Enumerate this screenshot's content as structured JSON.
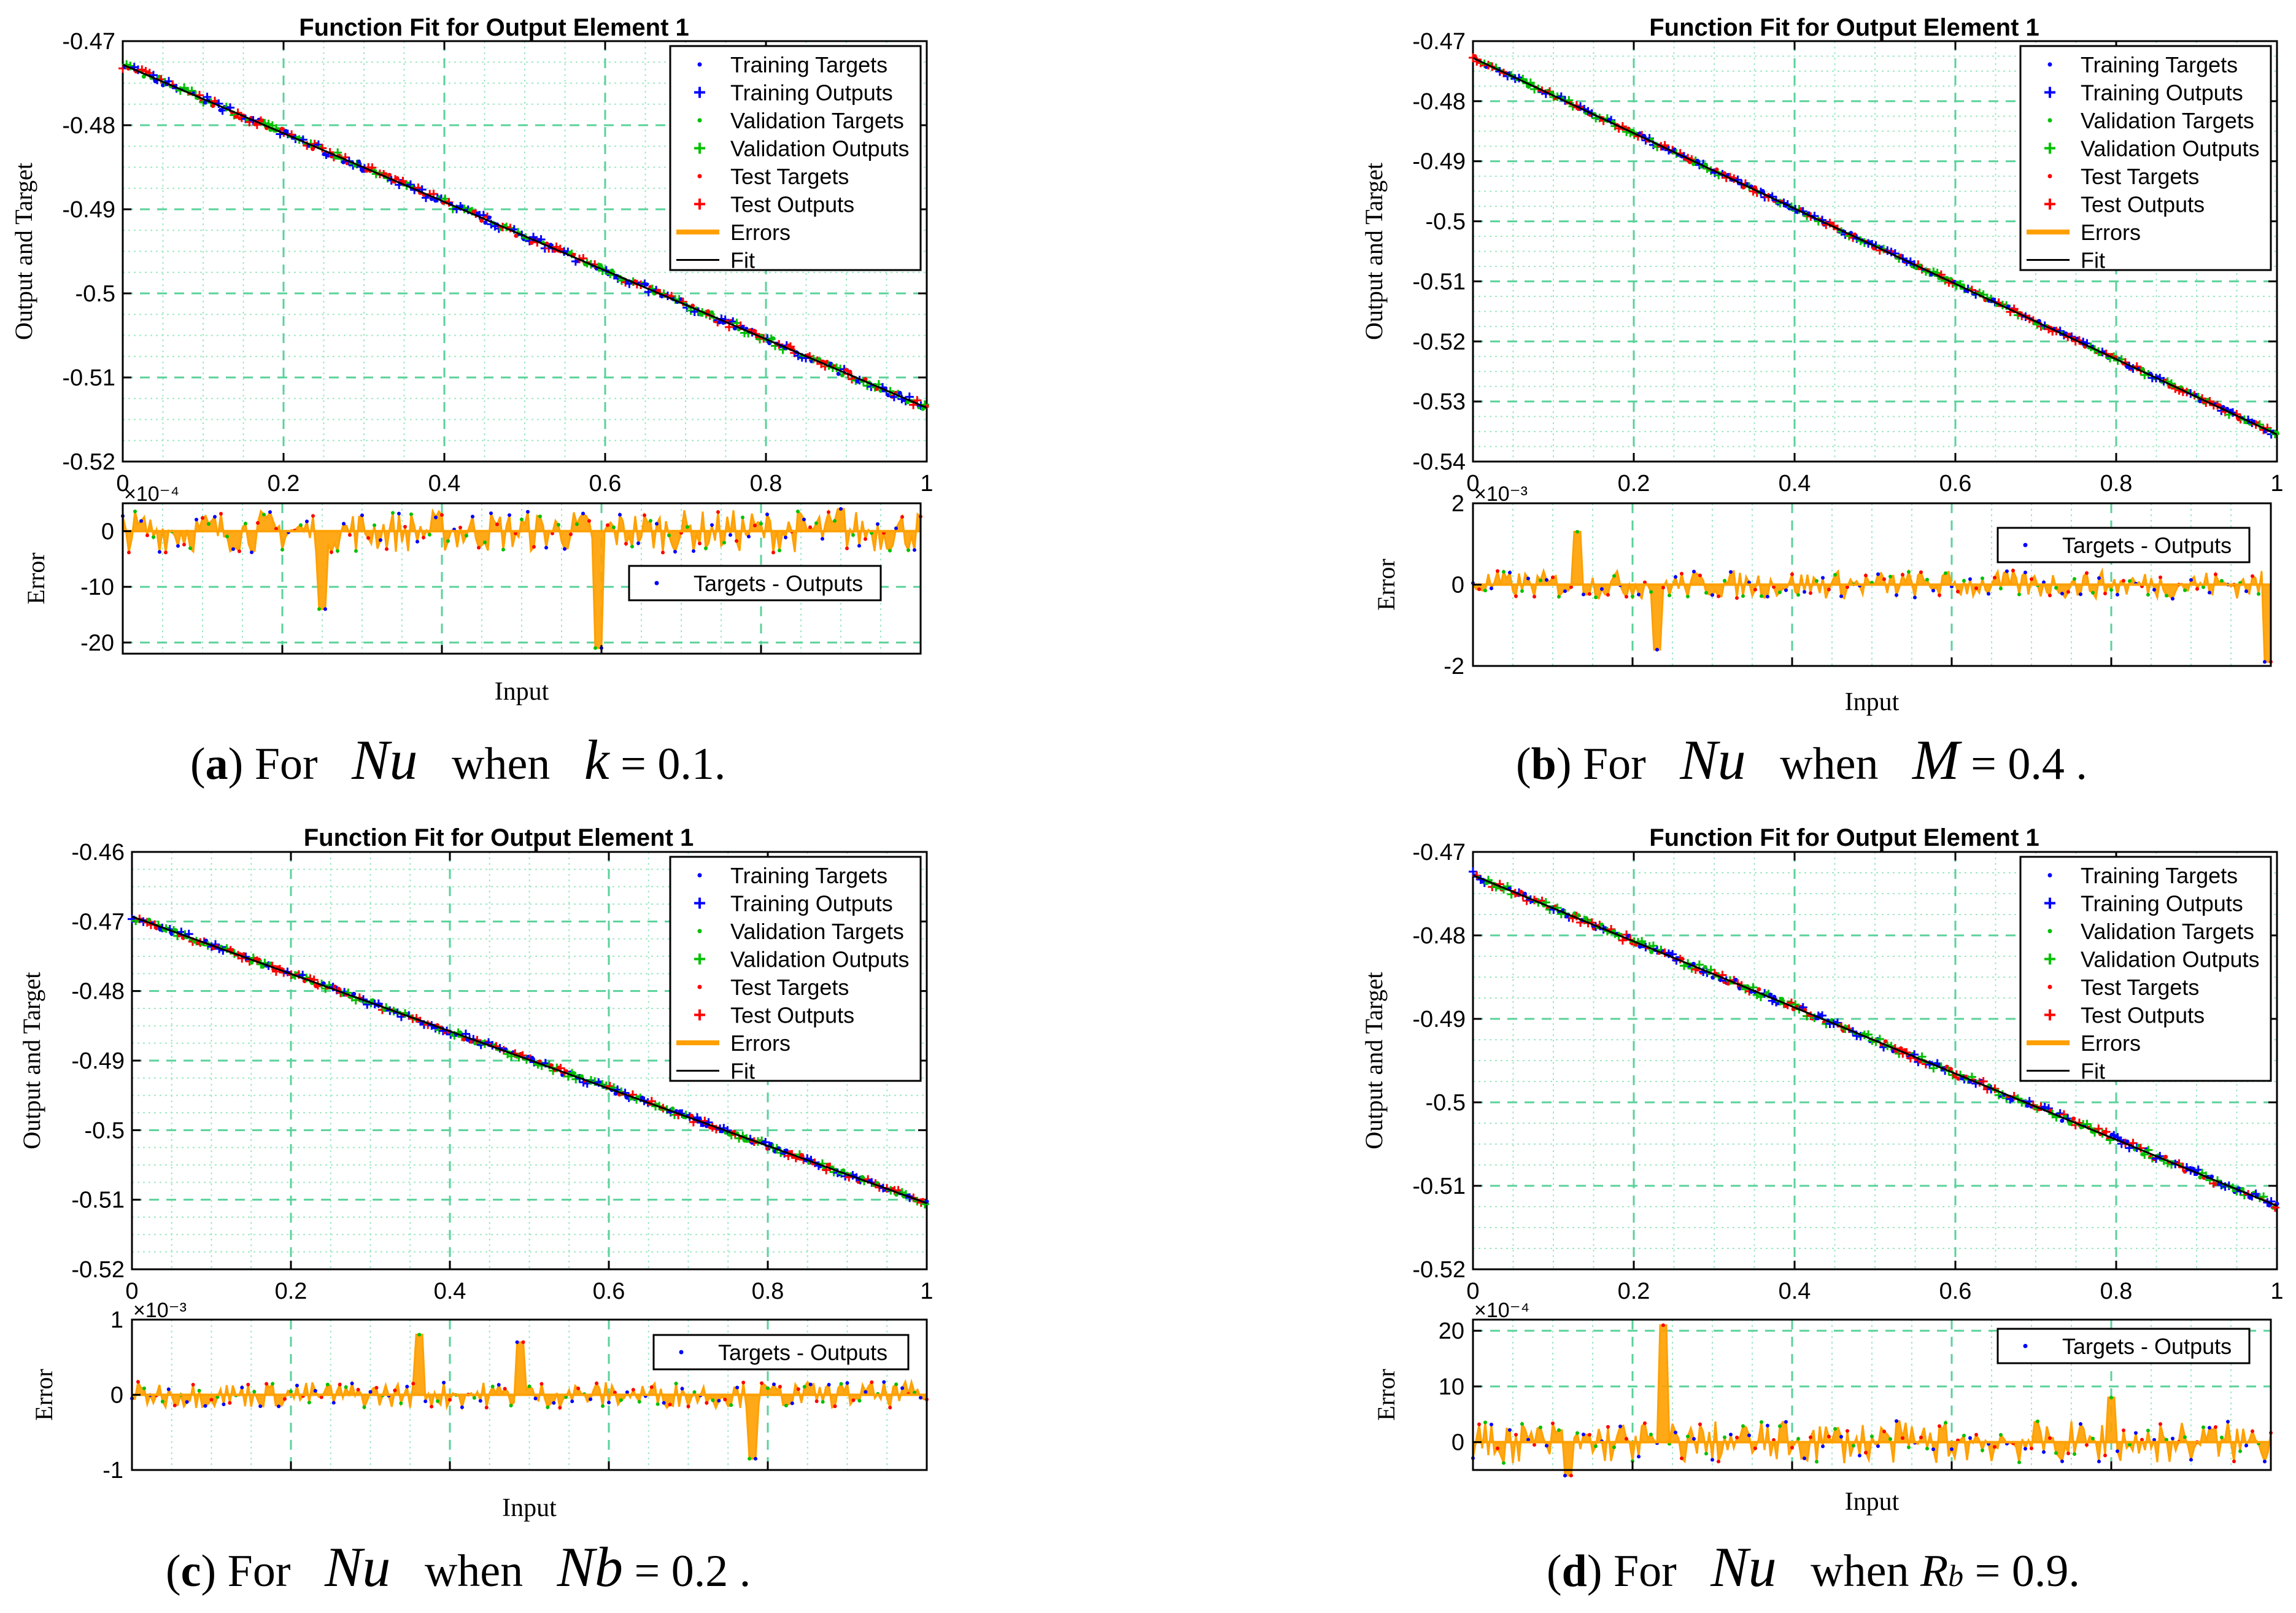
{
  "colors": {
    "training": "#0000ff",
    "validation": "#00c000",
    "test": "#ff0000",
    "errors": "#ffa000",
    "fit": "#000000",
    "grid_major": "#5ad29a",
    "grid_minor": "#9fe8c4"
  },
  "legend_labels": [
    "Training Targets",
    "Training Outputs",
    "Validation Targets",
    "Validation Outputs",
    "Test Targets",
    "Test Outputs",
    "Errors",
    "Fit"
  ],
  "error_legend_label": "Targets - Outputs",
  "chart_data": [
    {
      "id": "a",
      "type": "line",
      "title": "Function Fit for Output Element 1",
      "xlabel": "Input",
      "ylabel": "Output and Target",
      "xlim": [
        0,
        1
      ],
      "x_ticks": [
        "0",
        "0.2",
        "0.4",
        "0.6",
        "0.8",
        "1"
      ],
      "ylim": [
        -0.52,
        -0.47
      ],
      "y_ticks": [
        "-0.47",
        "-0.48",
        "-0.49",
        "-0.5",
        "-0.51",
        "-0.52"
      ],
      "fit_line": {
        "x": [
          0,
          1
        ],
        "y": [
          -0.4728,
          -0.5136
        ]
      },
      "error_panel": {
        "ylabel": "Error",
        "exponent": "×10⁻⁴",
        "ylim": [
          -22,
          5
        ],
        "y_ticks": [
          "0",
          "-10",
          "-20"
        ],
        "y_tick_values": [
          0,
          -10,
          -20
        ],
        "spikes": [
          {
            "x": 0.25,
            "value": -14
          },
          {
            "x": 0.595,
            "value": -21
          },
          {
            "x": 0.9,
            "value": 4
          }
        ],
        "legend_position": "right"
      },
      "caption": {
        "label": "a",
        "prefix": "For",
        "var": "Nu",
        "when": "when",
        "param": "k",
        "eq": "= 0.1."
      }
    },
    {
      "id": "b",
      "type": "line",
      "title": "Function Fit for Output Element 1",
      "xlabel": "Input",
      "ylabel": "Output and Target",
      "xlim": [
        0,
        1
      ],
      "x_ticks": [
        "0",
        "0.2",
        "0.4",
        "0.6",
        "0.8",
        "1"
      ],
      "ylim": [
        -0.54,
        -0.47
      ],
      "y_ticks": [
        "-0.47",
        "-0.48",
        "-0.49",
        "-0.5",
        "-0.51",
        "-0.52",
        "-0.53",
        "-0.54"
      ],
      "fit_line": {
        "x": [
          0,
          1
        ],
        "y": [
          -0.4728,
          -0.5355
        ]
      },
      "error_panel": {
        "ylabel": "Error",
        "exponent": "×10⁻³",
        "ylim": [
          -2,
          2
        ],
        "y_ticks": [
          "2",
          "0",
          "-2"
        ],
        "y_tick_values": [
          2,
          0,
          -2
        ],
        "spikes": [
          {
            "x": 0.13,
            "value": 1.3
          },
          {
            "x": 0.23,
            "value": -1.6
          },
          {
            "x": 0.995,
            "value": -1.9
          }
        ],
        "legend_position": "top-right"
      },
      "caption": {
        "label": "b",
        "prefix": "For",
        "var": "Nu",
        "when": "when",
        "param": "M",
        "eq": "= 0.4 ."
      }
    },
    {
      "id": "c",
      "type": "line",
      "title": "Function Fit for Output Element 1",
      "xlabel": "Input",
      "ylabel": "Output and Target",
      "xlim": [
        0,
        1
      ],
      "x_ticks": [
        "0",
        "0.2",
        "0.4",
        "0.6",
        "0.8",
        "1"
      ],
      "ylim": [
        -0.52,
        -0.46
      ],
      "y_ticks": [
        "-0.46",
        "-0.47",
        "-0.48",
        "-0.49",
        "-0.5",
        "-0.51",
        "-0.52"
      ],
      "fit_line": {
        "x": [
          0,
          1
        ],
        "y": [
          -0.4693,
          -0.5105
        ]
      },
      "error_panel": {
        "ylabel": "Error",
        "exponent": "×10⁻³",
        "ylim": [
          -1,
          1
        ],
        "y_ticks": [
          "1",
          "0",
          "-1"
        ],
        "y_tick_values": [
          1,
          0,
          -1
        ],
        "spikes": [
          {
            "x": 0.36,
            "value": 0.8
          },
          {
            "x": 0.49,
            "value": 0.7
          },
          {
            "x": 0.78,
            "value": -0.85
          }
        ],
        "legend_position": "top-right"
      },
      "caption": {
        "label": "c",
        "prefix": "For",
        "var": "Nu",
        "when": "when",
        "param": "Nb",
        "eq": "= 0.2 ."
      }
    },
    {
      "id": "d",
      "type": "line",
      "title": "Function Fit for Output Element 1",
      "xlabel": "Input",
      "ylabel": "Output and Target",
      "xlim": [
        0,
        1
      ],
      "x_ticks": [
        "0",
        "0.2",
        "0.4",
        "0.6",
        "0.8",
        "1"
      ],
      "ylim": [
        -0.52,
        -0.47
      ],
      "y_ticks": [
        "-0.47",
        "-0.48",
        "-0.49",
        "-0.5",
        "-0.51",
        "-0.52"
      ],
      "fit_line": {
        "x": [
          0,
          1
        ],
        "y": [
          -0.4728,
          -0.5124
        ]
      },
      "error_panel": {
        "ylabel": "Error",
        "exponent": "×10⁻⁴",
        "ylim": [
          -5,
          22
        ],
        "y_ticks": [
          "20",
          "10",
          "0"
        ],
        "y_tick_values": [
          20,
          10,
          0
        ],
        "spikes": [
          {
            "x": 0.24,
            "value": 21
          },
          {
            "x": 0.12,
            "value": -6
          },
          {
            "x": 0.8,
            "value": 8
          }
        ],
        "legend_position": "top-right"
      },
      "caption": {
        "label": "d",
        "prefix": "For",
        "var": "Nu",
        "when": "when",
        "param": "R",
        "param_sub": "b",
        "eq": "= 0.9."
      }
    }
  ]
}
